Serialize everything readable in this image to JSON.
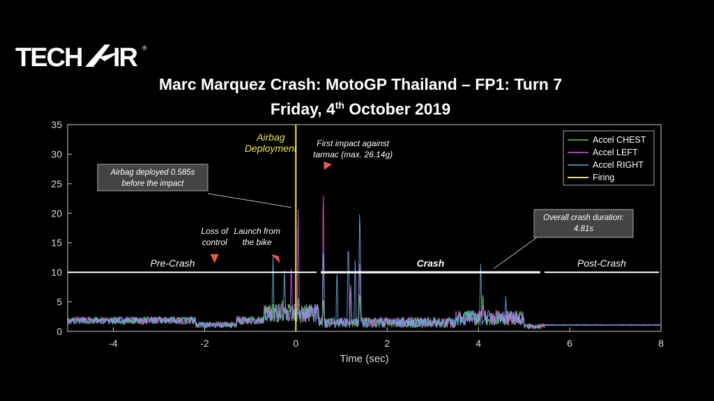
{
  "logo": {
    "text": "TECH-AIR",
    "registered": "®"
  },
  "title_line1": "Marc Marquez Crash: MotoGP Thailand – FP1: Turn 7",
  "title_line2_prefix": "Friday, 4",
  "title_line2_sup": "th",
  "title_line2_suffix": " October 2019",
  "colors": {
    "chest": "#6ecf3c",
    "left": "#e056e6",
    "right": "#5fb0e0",
    "firing": "#f0e84a",
    "marker": "#e85a45",
    "background": "#000000"
  },
  "chart_data": {
    "type": "line",
    "xlabel": "Time (sec)",
    "ylabel": "",
    "xlim": [
      -5,
      8
    ],
    "ylim": [
      0,
      35
    ],
    "xticks": [
      "-4",
      "-2",
      "0",
      "2",
      "4",
      "6",
      "8"
    ],
    "yticks": [
      "0",
      "5",
      "10",
      "15",
      "20",
      "25",
      "30",
      "35"
    ],
    "grid": false,
    "legend_position": "top-right",
    "series": [
      {
        "name": "Accel CHEST",
        "peaks": [
          [
            -0.3,
            6
          ],
          [
            0.05,
            6
          ],
          [
            0.6,
            6
          ],
          [
            1.2,
            8
          ],
          [
            1.4,
            7
          ],
          [
            4.1,
            7
          ]
        ]
      },
      {
        "name": "Accel LEFT",
        "peaks": [
          [
            -0.1,
            12
          ],
          [
            0.05,
            22
          ],
          [
            0.6,
            26.14
          ],
          [
            1.2,
            9
          ],
          [
            1.4,
            13
          ],
          [
            4.1,
            5
          ]
        ]
      },
      {
        "name": "Accel RIGHT",
        "peaks": [
          [
            -0.5,
            12.8
          ],
          [
            -0.25,
            11
          ],
          [
            0.6,
            15
          ],
          [
            0.9,
            11
          ],
          [
            1.15,
            16.5
          ],
          [
            1.3,
            12
          ],
          [
            1.4,
            22.5
          ],
          [
            4.05,
            12.2
          ],
          [
            4.6,
            6
          ]
        ]
      },
      {
        "name": "Firing",
        "x": [
          0,
          0
        ],
        "y": [
          0,
          35
        ]
      }
    ],
    "phases": [
      {
        "label": "Pre-Crash",
        "x_start": -5,
        "x_end": 0.5,
        "y": 10
      },
      {
        "label": "Crash",
        "x_start": 0.5,
        "x_end": 5.4,
        "y": 10
      },
      {
        "label": "Post-Crash",
        "x_start": 5.4,
        "x_end": 8,
        "y": 10
      }
    ],
    "annotations": {
      "airbag_deployment": "Airbag\nDeployment",
      "first_impact": "First impact against\ntarmac (max. 26.14g)",
      "airbag_deployed_box": "Airbag deployed 0.585s\nbefore the impact",
      "loss_of_control": "Loss of\ncontrol",
      "launch_from_bike": "Launch from\nthe bike",
      "overall_duration_box": "Overall crash duration:\n4.81s"
    }
  }
}
